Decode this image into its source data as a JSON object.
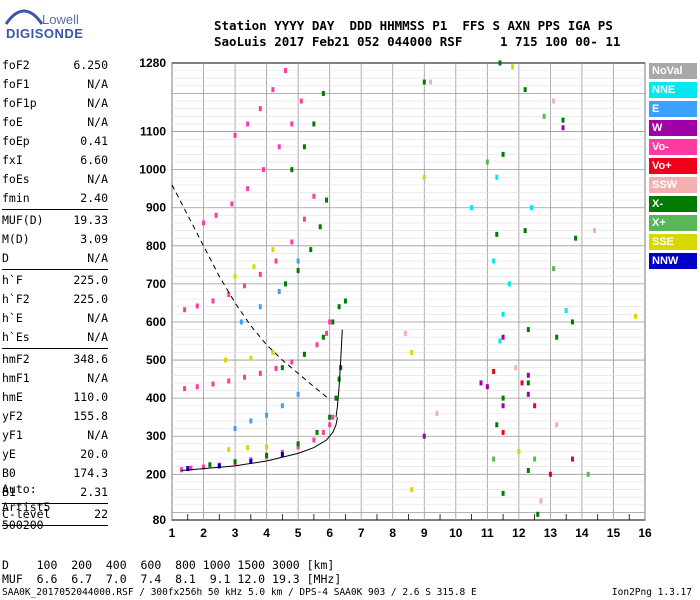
{
  "logo": {
    "line1": "Lowell",
    "line2": "DIGISONDE"
  },
  "header": {
    "line1": "Station YYYY DAY  DDD HHMMSS P1  FFS S AXN PPS IGA PS",
    "line2": "SaoLuis 2017 Feb21 052 044000 RSF     1 715 100 00- 11"
  },
  "params": [
    {
      "k": "foF2",
      "v": "6.250"
    },
    {
      "k": "foF1",
      "v": "N/A"
    },
    {
      "k": "foF1p",
      "v": "N/A"
    },
    {
      "k": "foE",
      "v": "N/A"
    },
    {
      "k": "foEp",
      "v": "0.41"
    },
    {
      "k": "fxI",
      "v": "6.60"
    },
    {
      "k": "foEs",
      "v": "N/A"
    },
    {
      "k": "fmin",
      "v": "2.40"
    },
    {
      "sep": true
    },
    {
      "k": "MUF(D)",
      "v": "19.33"
    },
    {
      "k": "M(D)",
      "v": "3.09"
    },
    {
      "k": "D",
      "v": "N/A"
    },
    {
      "sep": true
    },
    {
      "k": "h`F",
      "v": "225.0"
    },
    {
      "k": "h`F2",
      "v": "225.0"
    },
    {
      "k": "h`E",
      "v": "N/A"
    },
    {
      "k": "h`Es",
      "v": "N/A"
    },
    {
      "sep": true
    },
    {
      "k": "hmF2",
      "v": "348.6"
    },
    {
      "k": "hmF1",
      "v": "N/A"
    },
    {
      "k": "hmE",
      "v": "110.0"
    },
    {
      "k": "yF2",
      "v": "155.8"
    },
    {
      "k": "yF1",
      "v": "N/A"
    },
    {
      "k": "yE",
      "v": "20.0"
    },
    {
      "k": "B0",
      "v": "174.3"
    },
    {
      "k": "B1",
      "v": "2.31"
    },
    {
      "sep": true
    },
    {
      "k": "C-level",
      "v": "22"
    },
    {
      "sep": true
    }
  ],
  "auto": {
    "line1": "Auto:",
    "line2": "Artist5",
    "line3": "500200"
  },
  "dtable": {
    "line1": "D    100  200  400  600  800 1000 1500 3000 [km]",
    "line2": "MUF  6.6  6.7  7.0  7.4  8.1  9.1 12.0 19.3 [MHz]"
  },
  "footer": "SAA0K_2017052044000.RSF / 300fx256h 50 kHz 5.0 km / DPS-4 SAA0K 903 / 2.6 S 315.8 E",
  "version": "Ion2Png 1.3.17",
  "legend": [
    {
      "label": "NoVal",
      "color": "#a8a8a8"
    },
    {
      "label": "NNE",
      "color": "#00e8f0"
    },
    {
      "label": "E",
      "color": "#3ca0ff"
    },
    {
      "label": "W",
      "color": "#a000a8"
    },
    {
      "label": "Vo-",
      "color": "#ff3aa0"
    },
    {
      "label": "Vo+",
      "color": "#f00018"
    },
    {
      "label": "SSW",
      "color": "#f4b0b0"
    },
    {
      "label": "X-",
      "color": "#007a00"
    },
    {
      "label": "X+",
      "color": "#58b858"
    },
    {
      "label": "SSE",
      "color": "#d8d800"
    },
    {
      "label": "NNW",
      "color": "#0000c8"
    }
  ],
  "chart_data": {
    "type": "scatter",
    "xlim": [
      1,
      16
    ],
    "ylim": [
      80,
      1280
    ],
    "xticks": [
      1,
      2,
      3,
      4,
      5,
      6,
      7,
      8,
      9,
      10,
      11,
      12,
      13,
      14,
      15,
      16
    ],
    "yticks": [
      80,
      200,
      300,
      400,
      500,
      600,
      700,
      800,
      900,
      1000,
      1100,
      1280
    ],
    "grid": true,
    "series": [
      {
        "color": "#ff3aa0",
        "points": [
          [
            1.3,
            212
          ],
          [
            1.6,
            216
          ],
          [
            2.0,
            219
          ],
          [
            2.5,
            224
          ],
          [
            3.0,
            230
          ],
          [
            3.5,
            238
          ],
          [
            4.0,
            246
          ],
          [
            4.5,
            258
          ],
          [
            5.0,
            272
          ],
          [
            5.5,
            290
          ],
          [
            5.8,
            310
          ],
          [
            6.0,
            330
          ],
          [
            6.1,
            350
          ]
        ]
      },
      {
        "color": "#ff3aa0",
        "points": [
          [
            1.4,
            425
          ],
          [
            1.8,
            430
          ],
          [
            2.3,
            437
          ],
          [
            2.8,
            445
          ],
          [
            3.3,
            455
          ],
          [
            3.8,
            465
          ],
          [
            4.3,
            478
          ],
          [
            4.8,
            495
          ],
          [
            5.2,
            515
          ],
          [
            5.6,
            540
          ],
          [
            5.9,
            570
          ],
          [
            6.0,
            600
          ]
        ]
      },
      {
        "color": "#ff3aa0",
        "points": [
          [
            1.4,
            632
          ],
          [
            1.8,
            642
          ],
          [
            2.3,
            655
          ],
          [
            2.8,
            672
          ],
          [
            3.3,
            695
          ],
          [
            3.8,
            725
          ],
          [
            4.3,
            760
          ],
          [
            4.8,
            810
          ],
          [
            5.2,
            870
          ],
          [
            5.5,
            930
          ]
        ]
      },
      {
        "color": "#ff3aa0",
        "points": [
          [
            2.0,
            860
          ],
          [
            2.4,
            880
          ],
          [
            2.9,
            910
          ],
          [
            3.4,
            950
          ],
          [
            3.9,
            1000
          ],
          [
            4.4,
            1060
          ],
          [
            4.8,
            1120
          ],
          [
            5.1,
            1180
          ]
        ]
      },
      {
        "color": "#ff3aa0",
        "points": [
          [
            3.0,
            1090
          ],
          [
            3.4,
            1120
          ],
          [
            3.8,
            1160
          ],
          [
            4.2,
            1210
          ],
          [
            4.6,
            1260
          ]
        ]
      },
      {
        "color": "#007a00",
        "points": [
          [
            2.2,
            225
          ],
          [
            3.0,
            233
          ],
          [
            4.0,
            250
          ],
          [
            5.0,
            280
          ],
          [
            5.6,
            310
          ],
          [
            6.0,
            350
          ],
          [
            6.2,
            400
          ],
          [
            6.3,
            450
          ],
          [
            6.35,
            480
          ]
        ]
      },
      {
        "color": "#007a00",
        "points": [
          [
            4.5,
            480
          ],
          [
            5.2,
            515
          ],
          [
            5.8,
            560
          ],
          [
            6.1,
            600
          ],
          [
            6.3,
            640
          ],
          [
            6.5,
            655
          ]
        ]
      },
      {
        "color": "#007a00",
        "points": [
          [
            4.6,
            700
          ],
          [
            5.0,
            735
          ],
          [
            5.4,
            790
          ],
          [
            5.7,
            850
          ],
          [
            5.9,
            920
          ]
        ]
      },
      {
        "color": "#007a00",
        "points": [
          [
            4.8,
            1000
          ],
          [
            5.2,
            1060
          ],
          [
            5.5,
            1120
          ],
          [
            5.8,
            1200
          ]
        ]
      },
      {
        "color": "#0000c8",
        "points": [
          [
            1.5,
            215
          ],
          [
            2.5,
            222
          ],
          [
            3.5,
            234
          ],
          [
            4.5,
            252
          ]
        ]
      },
      {
        "color": "#d8d800",
        "points": [
          [
            2.8,
            265
          ],
          [
            3.4,
            270
          ],
          [
            4.0,
            272
          ],
          [
            2.7,
            500
          ],
          [
            3.5,
            505
          ],
          [
            4.2,
            520
          ],
          [
            3.0,
            720
          ],
          [
            3.6,
            745
          ],
          [
            4.2,
            790
          ]
        ]
      },
      {
        "color": "#3ca0ff",
        "points": [
          [
            3.0,
            320
          ],
          [
            3.5,
            340
          ],
          [
            4.0,
            355
          ],
          [
            4.5,
            380
          ],
          [
            5.0,
            410
          ],
          [
            3.2,
            600
          ],
          [
            3.8,
            640
          ],
          [
            4.4,
            680
          ],
          [
            5.0,
            760
          ]
        ]
      },
      {
        "color": "#007a00",
        "points": [
          [
            9.0,
            1230
          ],
          [
            11.4,
            1280
          ],
          [
            11.5,
            1040
          ],
          [
            11.3,
            830
          ],
          [
            11.5,
            400
          ],
          [
            11.3,
            330
          ],
          [
            11.5,
            150
          ],
          [
            12.2,
            1210
          ],
          [
            12.2,
            840
          ],
          [
            12.3,
            580
          ],
          [
            12.3,
            440
          ],
          [
            12.3,
            210
          ],
          [
            12.7,
            130
          ],
          [
            13.4,
            1130
          ],
          [
            13.7,
            600
          ],
          [
            13.2,
            560
          ],
          [
            12.6,
            95
          ],
          [
            13.8,
            820
          ]
        ]
      },
      {
        "color": "#a000a8",
        "points": [
          [
            13.4,
            1110
          ],
          [
            12.3,
            410
          ],
          [
            11.0,
            430
          ],
          [
            11.5,
            560
          ],
          [
            12.3,
            460
          ],
          [
            9.0,
            300
          ],
          [
            10.8,
            440
          ],
          [
            11.5,
            380
          ]
        ]
      },
      {
        "color": "#f00018",
        "points": [
          [
            11.5,
            310
          ],
          [
            11.2,
            470
          ],
          [
            12.1,
            440
          ],
          [
            12.5,
            380
          ],
          [
            13.7,
            240
          ],
          [
            13.0,
            200
          ]
        ]
      },
      {
        "color": "#00e8f0",
        "points": [
          [
            11.5,
            620
          ],
          [
            11.2,
            760
          ],
          [
            11.7,
            700
          ],
          [
            12.4,
            900
          ],
          [
            13.5,
            630
          ],
          [
            11.4,
            550
          ],
          [
            10.5,
            900
          ],
          [
            11.3,
            980
          ]
        ]
      },
      {
        "color": "#f4b0b0",
        "points": [
          [
            9.2,
            1230
          ],
          [
            14.4,
            840
          ],
          [
            13.1,
            1180
          ],
          [
            12.7,
            130
          ],
          [
            8.4,
            570
          ],
          [
            9.4,
            360
          ],
          [
            11.9,
            480
          ],
          [
            13.2,
            330
          ]
        ]
      },
      {
        "color": "#d8d800",
        "points": [
          [
            8.6,
            160
          ],
          [
            8.6,
            520
          ],
          [
            9.0,
            980
          ],
          [
            11.8,
            1270
          ],
          [
            15.7,
            615
          ],
          [
            12.0,
            260
          ]
        ]
      },
      {
        "color": "#58b858",
        "points": [
          [
            12.8,
            1140
          ],
          [
            13.1,
            740
          ],
          [
            11.0,
            1020
          ],
          [
            12.5,
            240
          ],
          [
            11.2,
            240
          ],
          [
            14.2,
            200
          ]
        ]
      }
    ],
    "curves": [
      {
        "style": "dashed",
        "points": [
          [
            1.0,
            960
          ],
          [
            1.5,
            880
          ],
          [
            2.0,
            800
          ],
          [
            2.5,
            720
          ],
          [
            3.0,
            650
          ],
          [
            3.5,
            590
          ],
          [
            4.0,
            540
          ],
          [
            4.5,
            500
          ],
          [
            5.0,
            465
          ],
          [
            5.5,
            430
          ],
          [
            5.8,
            410
          ],
          [
            6.0,
            395
          ]
        ]
      },
      {
        "style": "solid",
        "points": [
          [
            1.3,
            210
          ],
          [
            2.0,
            215
          ],
          [
            3.0,
            222
          ],
          [
            4.0,
            235
          ],
          [
            5.0,
            255
          ],
          [
            5.5,
            270
          ],
          [
            5.9,
            290
          ],
          [
            6.1,
            310
          ],
          [
            6.2,
            330
          ],
          [
            6.25,
            350
          ]
        ]
      },
      {
        "style": "solid",
        "points": [
          [
            6.2,
            350
          ],
          [
            6.25,
            380
          ],
          [
            6.3,
            430
          ],
          [
            6.35,
            500
          ],
          [
            6.4,
            580
          ]
        ]
      }
    ]
  }
}
